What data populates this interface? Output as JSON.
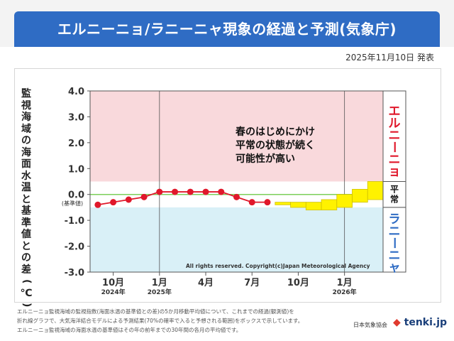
{
  "header": {
    "title": "エルニーニョ/ラニーニャ現象の経過と予測(気象庁)",
    "date": "2025年11月10日 発表"
  },
  "y_axis_label": "監視海域の海面水温と基準値との差(℃)",
  "chart_data": {
    "type": "line",
    "title": "エルニーニョ/ラニーニャ現象の経過と予測(気象庁)",
    "ylabel": "監視海域の海面水温と基準値との差(℃)",
    "ylim": [
      -3.0,
      4.0
    ],
    "yticks": [
      -3.0,
      -2.0,
      -1.0,
      0.0,
      1.0,
      2.0,
      3.0,
      4.0
    ],
    "ytick_labels": [
      "-3.0",
      "-2.0",
      "-1.0",
      "0.0",
      "1.0",
      "2.0",
      "3.0",
      "4.0"
    ],
    "baseline_label": "(基準値)",
    "x_months": [
      "2024-09",
      "2024-10",
      "2024-11",
      "2024-12",
      "2025-01",
      "2025-02",
      "2025-03",
      "2025-04",
      "2025-05",
      "2025-06",
      "2025-07",
      "2025-08",
      "2025-09",
      "2025-10",
      "2025-11",
      "2025-12",
      "2026-01",
      "2026-02",
      "2026-03"
    ],
    "xtick_labels": [
      {
        "month": "2024-10",
        "label": "10月",
        "year": "2024年"
      },
      {
        "month": "2025-01",
        "label": "1月",
        "year": "2025年"
      },
      {
        "month": "2025-04",
        "label": "4月",
        "year": ""
      },
      {
        "month": "2025-07",
        "label": "7月",
        "year": ""
      },
      {
        "month": "2025-10",
        "label": "10月",
        "year": ""
      },
      {
        "month": "2026-01",
        "label": "1月",
        "year": "2026年"
      }
    ],
    "observed": {
      "name": "経過(観測値)",
      "months": [
        "2024-09",
        "2024-10",
        "2024-11",
        "2024-12",
        "2025-01",
        "2025-02",
        "2025-03",
        "2025-04",
        "2025-05",
        "2025-06",
        "2025-07",
        "2025-08"
      ],
      "values": [
        -0.4,
        -0.3,
        -0.2,
        -0.1,
        0.1,
        0.1,
        0.1,
        0.1,
        0.1,
        -0.1,
        -0.3,
        -0.3
      ]
    },
    "forecast": {
      "name": "予測結果(70%の確率で入ると予想される範囲)",
      "months": [
        "2025-09",
        "2025-10",
        "2025-11",
        "2025-12",
        "2026-01",
        "2026-02",
        "2026-03"
      ],
      "low": [
        -0.4,
        -0.5,
        -0.6,
        -0.6,
        -0.5,
        -0.3,
        -0.2
      ],
      "high": [
        -0.3,
        -0.3,
        -0.3,
        -0.2,
        0.0,
        0.2,
        0.5
      ]
    },
    "regions": [
      {
        "name": "エルニーニョ",
        "from": 0.5,
        "to": 4.0,
        "color": "#f9d9dc"
      },
      {
        "name": "平常",
        "from": -0.5,
        "to": 0.5,
        "color": "#ffffff"
      },
      {
        "name": "ラニーニャ",
        "from": -3.0,
        "to": -0.5,
        "color": "#d9f0f7"
      }
    ],
    "annotation": [
      "春のはじめにかけ",
      "平常の状態が続く",
      "可能性が高い"
    ],
    "copyright": "All rights reserved. Copyright(c)Japan Meteorological Agency",
    "colors": {
      "observed": "#e0182b",
      "forecast_fill": "#fff200",
      "forecast_stroke": "#cfc000",
      "baseline": "#7ccf5a",
      "elnino_text": "#e0182b",
      "lanina_text": "#2f6cc4"
    }
  },
  "footer": {
    "lines": [
      "エルニーニョ監視海域の監視指数(海面水温の基準値との差)の5か月移動平均値について、これまでの経過(観測値)を",
      "折れ線グラフで、大気海洋結合モデルによる予測結果(70%の確率で入ると予想される範囲)をボックスで示しています。",
      "エルニーニョ監視海域の海面水温の基準値はその年の前年までの30年間の各月の平均値です。"
    ],
    "logo_jwa": "日本気象協会",
    "logo_tenki": "tenki.jp"
  }
}
